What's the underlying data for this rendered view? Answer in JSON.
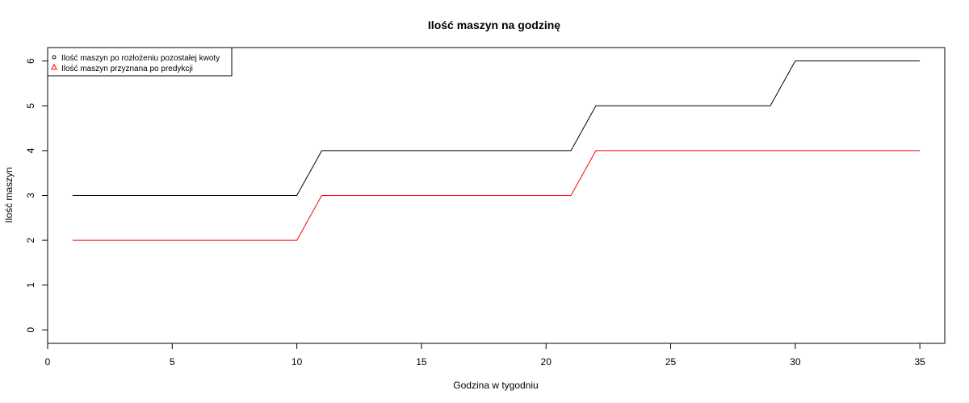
{
  "chart_data": {
    "type": "line",
    "title": "Ilość maszyn na godzinę",
    "xlabel": "Godzina w tygodniu",
    "ylabel": "Ilość maszyn",
    "xlim": [
      0,
      36
    ],
    "ylim": [
      -0.3,
      6.3
    ],
    "xticks": [
      0,
      5,
      10,
      15,
      20,
      25,
      30,
      35
    ],
    "yticks": [
      0,
      1,
      2,
      3,
      4,
      5,
      6
    ],
    "grid": false,
    "legend_position": "top-left",
    "series": [
      {
        "name": "Ilość maszyn po rozłożeniu pozostałej kwoty",
        "color": "#000000",
        "marker": "circle",
        "x": [
          1,
          2,
          3,
          4,
          5,
          6,
          7,
          8,
          9,
          10,
          11,
          12,
          13,
          14,
          15,
          16,
          17,
          18,
          19,
          20,
          21,
          22,
          23,
          24,
          25,
          26,
          27,
          28,
          29,
          30,
          31,
          32,
          33,
          34,
          35
        ],
        "values": [
          3,
          3,
          3,
          3,
          3,
          3,
          3,
          3,
          3,
          3,
          4,
          4,
          4,
          4,
          4,
          4,
          4,
          4,
          4,
          4,
          4,
          5,
          5,
          5,
          5,
          5,
          5,
          5,
          5,
          6,
          6,
          6,
          6,
          6,
          6
        ]
      },
      {
        "name": "Ilość maszyn przyznana po predykcji",
        "color": "#ff0000",
        "marker": "triangle",
        "x": [
          1,
          2,
          3,
          4,
          5,
          6,
          7,
          8,
          9,
          10,
          11,
          12,
          13,
          14,
          15,
          16,
          17,
          18,
          19,
          20,
          21,
          22,
          23,
          24,
          25,
          26,
          27,
          28,
          29,
          30,
          31,
          32,
          33,
          34,
          35
        ],
        "values": [
          2,
          2,
          2,
          2,
          2,
          2,
          2,
          2,
          2,
          2,
          3,
          3,
          3,
          3,
          3,
          3,
          3,
          3,
          3,
          3,
          3,
          4,
          4,
          4,
          4,
          4,
          4,
          4,
          4,
          4,
          4,
          4,
          4,
          4,
          4
        ]
      }
    ]
  }
}
